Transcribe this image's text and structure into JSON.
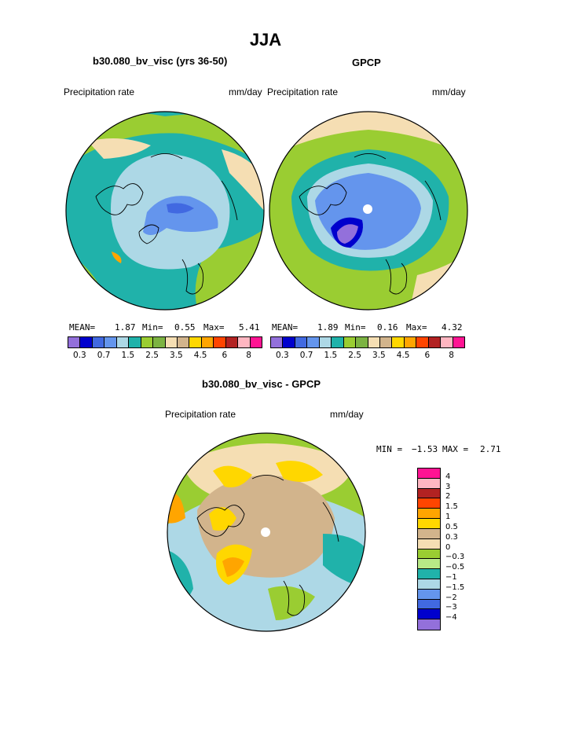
{
  "main_title": "JJA",
  "colors": {
    "abs_palette": [
      "#9370db",
      "#0000cd",
      "#4169e1",
      "#6495ed",
      "#add8e6",
      "#20b2aa",
      "#9acd32",
      "#7cb342",
      "#f5deb3",
      "#d2b48c",
      "#ffd700",
      "#ffa500",
      "#ff4500",
      "#b22222",
      "#ffb6c1",
      "#ff1493"
    ],
    "diff_palette": [
      "#ff1493",
      "#ffb6c1",
      "#b22222",
      "#ff4500",
      "#ffa500",
      "#ffd700",
      "#d2b48c",
      "#f5deb3",
      "#9acd32",
      "#b8e986",
      "#20b2aa",
      "#add8e6",
      "#6495ed",
      "#4169e1",
      "#0000cd",
      "#9370db"
    ]
  },
  "panels": {
    "model": {
      "title": "b30.080_bv_visc (yrs 36-50)",
      "left_label": "Precipitation rate",
      "right_label": "mm/day",
      "mean_label": "MEAN=",
      "mean": "1.87",
      "min_label": "Min=",
      "min": "0.55",
      "max_label": "Max=",
      "max": "5.41"
    },
    "obs": {
      "title": "GPCP",
      "left_label": "Precipitation rate",
      "right_label": "mm/day",
      "mean_label": "MEAN=",
      "mean": "1.89",
      "min_label": "Min=",
      "min": "0.16",
      "max_label": "Max=",
      "max": "4.32"
    },
    "diff": {
      "title": "b30.080_bv_visc - GPCP",
      "left_label": "Precipitation rate",
      "right_label": "mm/day",
      "min_label": "MIN =",
      "min": "−1.53",
      "max_label": "MAX =",
      "max": "2.71"
    }
  },
  "chart_data": [
    {
      "type": "heatmap",
      "title": "b30.080_bv_visc (yrs 36-50)",
      "projection": "north polar stereographic",
      "units": "mm/day",
      "contour_levels": [
        0.2,
        0.3,
        0.5,
        0.7,
        1,
        1.5,
        2,
        2.5,
        3,
        3.5,
        4,
        4.5,
        5,
        6,
        7,
        8
      ],
      "colorbar_tick_labels": [
        "0.3",
        "0.7",
        "1.5",
        "2.5",
        "3.5",
        "4.5",
        "6",
        "8"
      ],
      "stats": {
        "mean": 1.87,
        "min": 0.55,
        "max": 5.41
      }
    },
    {
      "type": "heatmap",
      "title": "GPCP",
      "projection": "north polar stereographic",
      "units": "mm/day",
      "contour_levels": [
        0.2,
        0.3,
        0.5,
        0.7,
        1,
        1.5,
        2,
        2.5,
        3,
        3.5,
        4,
        4.5,
        5,
        6,
        7,
        8
      ],
      "colorbar_tick_labels": [
        "0.3",
        "0.7",
        "1.5",
        "2.5",
        "3.5",
        "4.5",
        "6",
        "8"
      ],
      "stats": {
        "mean": 1.89,
        "min": 0.16,
        "max": 4.32
      }
    },
    {
      "type": "heatmap",
      "title": "b30.080_bv_visc - GPCP",
      "projection": "north polar stereographic",
      "units": "mm/day",
      "contour_levels": [
        -4,
        -3,
        -2,
        -1.5,
        -1,
        -0.5,
        -0.3,
        0,
        0.3,
        0.5,
        1,
        1.5,
        2,
        3,
        4
      ],
      "colorbar_tick_labels": [
        "4",
        "3",
        "2",
        "1.5",
        "1",
        "0.5",
        "0.3",
        "0",
        "−0.3",
        "−0.5",
        "−1",
        "−1.5",
        "−2",
        "−3",
        "−4"
      ],
      "stats": {
        "min": -1.53,
        "max": 2.71
      }
    }
  ]
}
